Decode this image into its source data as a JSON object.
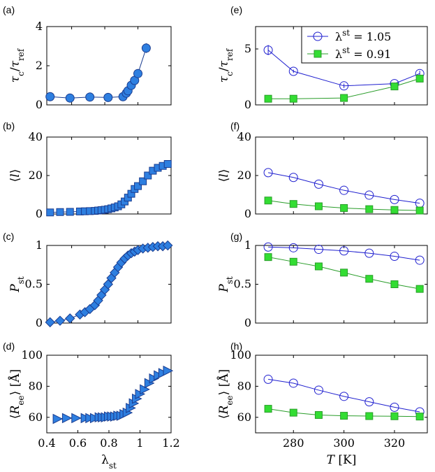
{
  "figure": {
    "background": "#ffffff",
    "colors": {
      "left_marker_fill": "#2e7fe0",
      "left_marker_stroke": "#1a3c8f",
      "blue_series": "#1f1fcf",
      "green_series_line": "#2a9d2a",
      "green_series_fill": "#33dd33"
    }
  },
  "chart_data": [
    {
      "panel": "(a)",
      "type": "line",
      "marker": "circle",
      "marker_style": "filled",
      "xlabel": "",
      "ylabel": "τc/τref",
      "xlim": [
        0.45,
        1.2
      ],
      "ylim": [
        0,
        4
      ],
      "x_ticks": [],
      "y_ticks": [
        0,
        2,
        4
      ],
      "series": [
        {
          "x": [
            0.47,
            0.59,
            0.71,
            0.82,
            0.91,
            0.93,
            0.94,
            0.96,
            0.98,
            1.0,
            1.05
          ],
          "y": [
            0.42,
            0.35,
            0.4,
            0.38,
            0.42,
            0.6,
            0.72,
            1.0,
            1.25,
            1.6,
            2.9
          ],
          "err": [
            0.06,
            0.06,
            0.06,
            0.05,
            0.06,
            0.07,
            0.08,
            0.1,
            0.1,
            0.12,
            0.25
          ]
        }
      ]
    },
    {
      "panel": "(b)",
      "type": "line",
      "marker": "square",
      "marker_style": "filled",
      "xlabel": "",
      "ylabel": "⟨l⟩",
      "xlim": [
        0.45,
        1.2
      ],
      "ylim": [
        0,
        40
      ],
      "x_ticks": [],
      "y_ticks": [
        0,
        20,
        40
      ],
      "series": [
        {
          "x": [
            0.47,
            0.53,
            0.59,
            0.65,
            0.68,
            0.71,
            0.74,
            0.76,
            0.78,
            0.8,
            0.82,
            0.84,
            0.86,
            0.88,
            0.9,
            0.92,
            0.94,
            0.96,
            0.98,
            1.0,
            1.03,
            1.06,
            1.09,
            1.12,
            1.15,
            1.18
          ],
          "y": [
            0.8,
            1.0,
            1.1,
            1.3,
            1.4,
            1.5,
            1.6,
            1.8,
            2.0,
            2.2,
            2.5,
            2.9,
            3.4,
            4.0,
            5.0,
            6.5,
            8.5,
            10.5,
            13.0,
            14.5,
            17.0,
            20.0,
            22.5,
            24.0,
            25.0,
            26.0
          ]
        }
      ]
    },
    {
      "panel": "(c)",
      "type": "line",
      "marker": "diamond",
      "marker_style": "filled",
      "xlabel": "",
      "ylabel": "Pst",
      "xlim": [
        0.45,
        1.2
      ],
      "ylim": [
        0,
        1
      ],
      "x_ticks": [],
      "y_ticks": [
        0,
        0.5,
        1
      ],
      "series": [
        {
          "x": [
            0.47,
            0.53,
            0.59,
            0.65,
            0.68,
            0.71,
            0.74,
            0.76,
            0.78,
            0.8,
            0.82,
            0.84,
            0.86,
            0.88,
            0.9,
            0.92,
            0.94,
            0.96,
            0.98,
            1.0,
            1.03,
            1.06,
            1.09,
            1.12,
            1.15,
            1.18
          ],
          "y": [
            0.01,
            0.03,
            0.06,
            0.11,
            0.14,
            0.18,
            0.23,
            0.29,
            0.36,
            0.43,
            0.5,
            0.58,
            0.65,
            0.72,
            0.78,
            0.83,
            0.87,
            0.9,
            0.92,
            0.94,
            0.96,
            0.97,
            0.98,
            0.99,
            0.99,
            1.0
          ]
        }
      ]
    },
    {
      "panel": "(d)",
      "type": "line",
      "marker": "triangle-right",
      "marker_style": "filled",
      "xlabel": "λst",
      "ylabel": "⟨Ree⟩ [Å]",
      "xlim": [
        0.4,
        1.2
      ],
      "ylim": [
        50,
        100
      ],
      "x_ticks": [
        "0.4",
        "0.6",
        "0.8",
        "1",
        "1.2"
      ],
      "y_ticks": [
        60,
        80,
        100
      ],
      "series": [
        {
          "x": [
            0.47,
            0.53,
            0.59,
            0.65,
            0.68,
            0.71,
            0.74,
            0.76,
            0.78,
            0.8,
            0.82,
            0.84,
            0.86,
            0.88,
            0.9,
            0.92,
            0.94,
            0.96,
            0.98,
            1.0,
            1.03,
            1.06,
            1.09,
            1.12,
            1.15,
            1.18
          ],
          "y": [
            59,
            59.5,
            59.5,
            59.5,
            59.5,
            59.5,
            60,
            60,
            60,
            60.5,
            60.5,
            60.5,
            61,
            61,
            62,
            63,
            66,
            69,
            72,
            75,
            78,
            82,
            85,
            87,
            88.5,
            90
          ]
        }
      ]
    },
    {
      "panel": "(e)",
      "type": "line",
      "xlabel": "",
      "ylabel": "τc/τref",
      "xlim": [
        265,
        333
      ],
      "ylim": [
        0,
        7
      ],
      "x_ticks": [],
      "y_ticks": [
        0,
        5
      ],
      "legend": {
        "position": "top-right"
      },
      "series": [
        {
          "name": "λst = 1.05",
          "marker": "circle-open",
          "x": [
            270,
            280,
            300,
            320,
            330
          ],
          "y": [
            4.9,
            3.0,
            1.7,
            1.9,
            2.8
          ],
          "err": [
            0.45,
            0.15,
            0.2,
            0.1,
            0.25
          ]
        },
        {
          "name": "λst = 0.91",
          "marker": "square-filled",
          "x": [
            270,
            280,
            300,
            320,
            330
          ],
          "y": [
            0.55,
            0.55,
            0.62,
            1.65,
            2.35
          ]
        }
      ]
    },
    {
      "panel": "(f)",
      "type": "line",
      "xlabel": "",
      "ylabel": "⟨l⟩",
      "xlim": [
        265,
        333
      ],
      "ylim": [
        0,
        40
      ],
      "x_ticks": [],
      "y_ticks": [
        0,
        20,
        40
      ],
      "series": [
        {
          "name": "λst = 1.05",
          "marker": "circle-open",
          "x": [
            270,
            280,
            290,
            300,
            310,
            320,
            330
          ],
          "y": [
            21.5,
            19,
            15.5,
            12.3,
            9.8,
            7.5,
            5.6
          ]
        },
        {
          "name": "λst = 0.91",
          "marker": "square-filled",
          "x": [
            270,
            280,
            290,
            300,
            310,
            320,
            330
          ],
          "y": [
            7,
            5.2,
            4,
            3.1,
            2.5,
            2.1,
            1.8
          ]
        }
      ]
    },
    {
      "panel": "(g)",
      "type": "line",
      "xlabel": "",
      "ylabel": "Pst",
      "xlim": [
        265,
        333
      ],
      "ylim": [
        0,
        1
      ],
      "x_ticks": [],
      "y_ticks": [
        0,
        0.5,
        1
      ],
      "series": [
        {
          "name": "λst = 1.05",
          "marker": "circle-open",
          "x": [
            270,
            280,
            290,
            300,
            310,
            320,
            330
          ],
          "y": [
            0.98,
            0.97,
            0.95,
            0.93,
            0.9,
            0.86,
            0.81
          ]
        },
        {
          "name": "λst = 0.91",
          "marker": "square-filled",
          "x": [
            270,
            280,
            290,
            300,
            310,
            320,
            330
          ],
          "y": [
            0.85,
            0.79,
            0.73,
            0.65,
            0.57,
            0.5,
            0.44
          ]
        }
      ]
    },
    {
      "panel": "(h)",
      "type": "line",
      "xlabel": "T [K]",
      "ylabel": "⟨Ree⟩ [Å]",
      "xlim": [
        265,
        333
      ],
      "ylim": [
        50,
        100
      ],
      "x_ticks": [
        "280",
        "300",
        "320"
      ],
      "y_ticks": [
        60,
        80,
        100
      ],
      "series": [
        {
          "name": "λst = 1.05",
          "marker": "circle-open",
          "x": [
            270,
            280,
            290,
            300,
            310,
            320,
            330
          ],
          "y": [
            84.5,
            82,
            77.5,
            73.5,
            70,
            66.5,
            63.5
          ]
        },
        {
          "name": "λst = 0.91",
          "marker": "square-filled",
          "x": [
            270,
            280,
            290,
            300,
            310,
            320,
            330
          ],
          "y": [
            65.5,
            63,
            61.5,
            61,
            60.8,
            60.7,
            60.5
          ]
        }
      ]
    }
  ]
}
